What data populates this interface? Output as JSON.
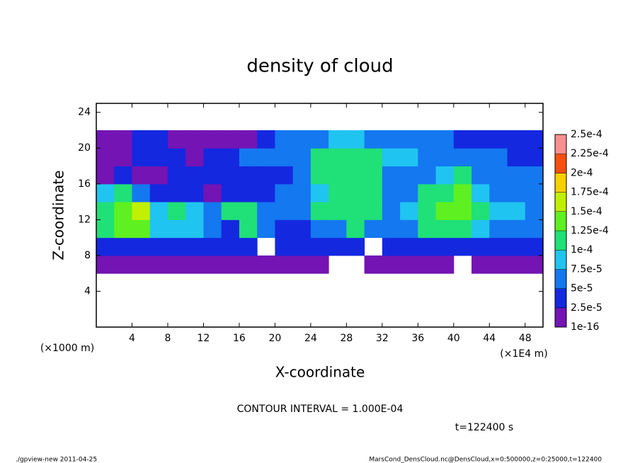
{
  "chart_data": {
    "type": "heatmap",
    "title": "density of cloud",
    "x_label": "X-coordinate",
    "y_label": "Z-coordinate",
    "x_unit": "(×1E4 m)",
    "y_unit": "(×1000 m)",
    "contour_note": "CONTOUR INTERVAL = 1.000E-04",
    "time_note": "t=122400 s",
    "footer_left": "./gpview-new  2011-04-25",
    "footer_right": "MarsCond_DensCloud.nc@DensCloud,x=0:500000,z=0:25000,t=122400",
    "xlim": [
      0,
      50
    ],
    "ylim": [
      0,
      25
    ],
    "xticks": [
      4,
      8,
      12,
      16,
      20,
      24,
      28,
      32,
      36,
      40,
      44,
      48
    ],
    "yticks": [
      4,
      8,
      12,
      16,
      20,
      24
    ],
    "x": [
      1,
      3,
      5,
      7,
      9,
      11,
      13,
      15,
      17,
      19,
      21,
      23,
      25,
      27,
      29,
      31,
      33,
      35,
      37,
      39,
      41,
      43,
      45,
      47,
      49
    ],
    "y": [
      7,
      9,
      11,
      13,
      15,
      17,
      19,
      21
    ],
    "values": [
      [
        5e-06,
        5e-06,
        5e-06,
        5e-06,
        5e-06,
        5e-06,
        5e-06,
        5e-06,
        5e-06,
        5e-06,
        5e-06,
        5e-06,
        5e-06,
        null,
        null,
        5e-06,
        5e-06,
        5e-06,
        5e-06,
        5e-06,
        null,
        5e-06,
        5e-06,
        5e-06,
        5e-06
      ],
      [
        3e-05,
        3e-05,
        3e-05,
        3e-05,
        3e-05,
        3e-05,
        3e-05,
        3e-05,
        3e-05,
        null,
        3e-05,
        3e-05,
        3e-05,
        3e-05,
        3e-05,
        null,
        3e-05,
        3e-05,
        3e-05,
        3e-05,
        3e-05,
        3e-05,
        3e-05,
        3e-05,
        3e-05
      ],
      [
        0.0001,
        0.00013,
        0.00014,
        8e-05,
        9e-05,
        8e-05,
        5e-05,
        4e-05,
        0.00012,
        5e-05,
        4e-05,
        4e-05,
        5e-05,
        6e-05,
        0.00011,
        6e-05,
        5e-05,
        7e-05,
        0.00011,
        0.00012,
        0.00011,
        8e-05,
        7e-05,
        6e-05,
        7e-05
      ],
      [
        0.00011,
        0.00014,
        0.00015,
        9e-05,
        0.0001,
        8e-05,
        7e-05,
        0.0001,
        0.00012,
        5e-05,
        6e-05,
        7e-05,
        0.00011,
        0.00012,
        0.00012,
        0.00011,
        6e-05,
        8e-05,
        0.00011,
        0.00013,
        0.00014,
        0.00012,
        9e-05,
        8e-05,
        7e-05
      ],
      [
        8e-05,
        0.00012,
        6e-05,
        3e-05,
        3e-05,
        3e-05,
        2e-05,
        3e-05,
        3e-05,
        4e-05,
        6e-05,
        5e-05,
        9e-05,
        0.00011,
        0.00012,
        0.0001,
        5e-05,
        6e-05,
        0.00011,
        0.00012,
        0.00013,
        9e-05,
        7e-05,
        6e-05,
        5e-05
      ],
      [
        2e-05,
        3e-05,
        2e-05,
        1e-05,
        3e-05,
        3e-05,
        3e-05,
        3e-05,
        3e-05,
        4e-05,
        4e-05,
        6e-05,
        0.00011,
        0.00012,
        0.00012,
        0.0001,
        6e-05,
        5e-05,
        6e-05,
        8e-05,
        0.0001,
        7e-05,
        6e-05,
        5e-05,
        6e-05
      ],
      [
        1e-05,
        1e-05,
        4e-05,
        4e-05,
        3e-05,
        2e-05,
        3e-05,
        4e-05,
        5e-05,
        5e-05,
        6e-05,
        7e-05,
        0.0001,
        0.00011,
        0.00011,
        0.0001,
        9e-05,
        9e-05,
        7e-05,
        6e-05,
        5e-05,
        5e-05,
        5e-05,
        4e-05,
        4e-05
      ],
      [
        5e-06,
        5e-06,
        3e-05,
        3e-05,
        1e-05,
        2e-05,
        1e-05,
        1e-05,
        2e-05,
        3e-05,
        5e-05,
        5e-05,
        5e-05,
        8e-05,
        8e-05,
        7e-05,
        6e-05,
        6e-05,
        5e-05,
        5e-05,
        4e-05,
        4e-05,
        4e-05,
        4e-05,
        3e-05
      ]
    ],
    "colorbar": {
      "levels": [
        {
          "value": 1e-16,
          "label": "1e-16"
        },
        {
          "value": 2.5e-05,
          "label": "2.5e-5"
        },
        {
          "value": 5e-05,
          "label": "5e-5"
        },
        {
          "value": 7.5e-05,
          "label": "7.5e-5"
        },
        {
          "value": 0.0001,
          "label": "1e-4"
        },
        {
          "value": 0.000125,
          "label": "1.25e-4"
        },
        {
          "value": 0.00015,
          "label": "1.5e-4"
        },
        {
          "value": 0.000175,
          "label": "1.75e-4"
        },
        {
          "value": 0.0002,
          "label": "2e-4"
        },
        {
          "value": 0.000225,
          "label": "2.25e-4"
        },
        {
          "value": 0.00025,
          "label": "2.5e-4"
        }
      ],
      "colors": [
        "#7414b4",
        "#1428e0",
        "#1478f0",
        "#20c4f0",
        "#20e078",
        "#5ef020",
        "#c0f000",
        "#f8d000",
        "#f85010",
        "#f89090"
      ]
    }
  }
}
